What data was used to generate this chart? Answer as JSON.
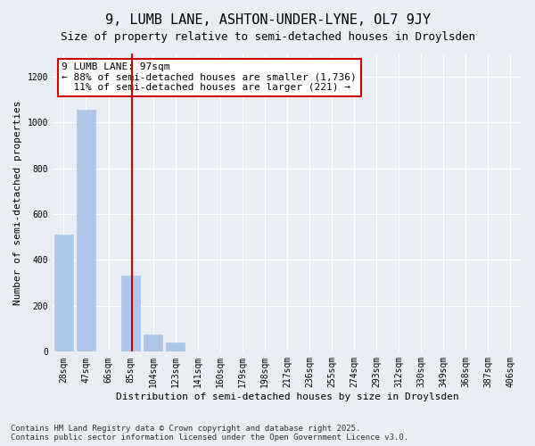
{
  "title": "9, LUMB LANE, ASHTON-UNDER-LYNE, OL7 9JY",
  "subtitle": "Size of property relative to semi-detached houses in Droylsden",
  "xlabel": "Distribution of semi-detached houses by size in Droylsden",
  "ylabel": "Number of semi-detached properties",
  "bins": [
    "28sqm",
    "47sqm",
    "66sqm",
    "85sqm",
    "104sqm",
    "123sqm",
    "141sqm",
    "160sqm",
    "179sqm",
    "198sqm",
    "217sqm",
    "236sqm",
    "255sqm",
    "274sqm",
    "293sqm",
    "312sqm",
    "330sqm",
    "349sqm",
    "368sqm",
    "387sqm",
    "406sqm"
  ],
  "bar_values": [
    510,
    1055,
    0,
    330,
    75,
    40,
    0,
    0,
    0,
    0,
    0,
    0,
    0,
    0,
    0,
    0,
    0,
    0,
    0,
    0,
    0
  ],
  "bar_color": "#aec6e8",
  "bar_edge_color": "#aec6e8",
  "vline_x_index": 3.05,
  "vline_color": "#cc0000",
  "annotation_text": "9 LUMB LANE: 97sqm\n← 88% of semi-detached houses are smaller (1,736)\n  11% of semi-detached houses are larger (221) →",
  "annotation_box_color": "#ffffff",
  "annotation_edge_color": "#cc0000",
  "ylim": [
    0,
    1300
  ],
  "yticks": [
    0,
    200,
    400,
    600,
    800,
    1000,
    1200
  ],
  "background_color": "#e8eef4",
  "plot_bg_color": "#e8eef4",
  "footer": "Contains HM Land Registry data © Crown copyright and database right 2025.\nContains public sector information licensed under the Open Government Licence v3.0.",
  "title_fontsize": 11,
  "subtitle_fontsize": 9,
  "label_fontsize": 8,
  "tick_fontsize": 7,
  "footer_fontsize": 6.5
}
